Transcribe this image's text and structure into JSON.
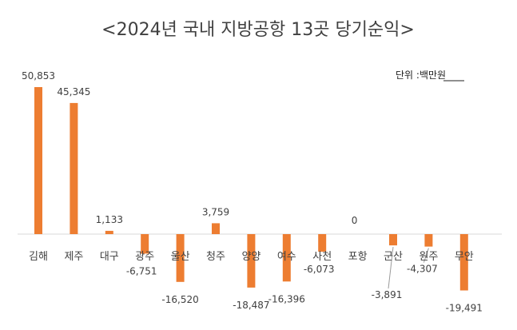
{
  "chart_data": {
    "type": "bar",
    "title": "<2024년 국내 지방공항 13곳 당기순익>",
    "unit_label": "단위 :백만원",
    "categories": [
      "김해",
      "제주",
      "대구",
      "광주",
      "울산",
      "청주",
      "양양",
      "여수",
      "사천",
      "포항",
      "군산",
      "원주",
      "무안"
    ],
    "values": [
      50853,
      45345,
      1133,
      -6751,
      -16520,
      3759,
      -18487,
      -16396,
      -6073,
      0,
      -3891,
      -4307,
      -19491
    ],
    "value_labels": [
      "50,853",
      "45,345",
      "1,133",
      "-6,751",
      "-16,520",
      "3,759",
      "-18,487",
      "-16,396",
      "-6,073",
      "0",
      "-3,891",
      "-4,307",
      "-19,491"
    ],
    "xlabel": "",
    "ylabel": "",
    "grid": false,
    "legend": "none",
    "bar_color": "#ED7D31",
    "axis_color": "#D9D9D9",
    "text_color": "#404040"
  }
}
